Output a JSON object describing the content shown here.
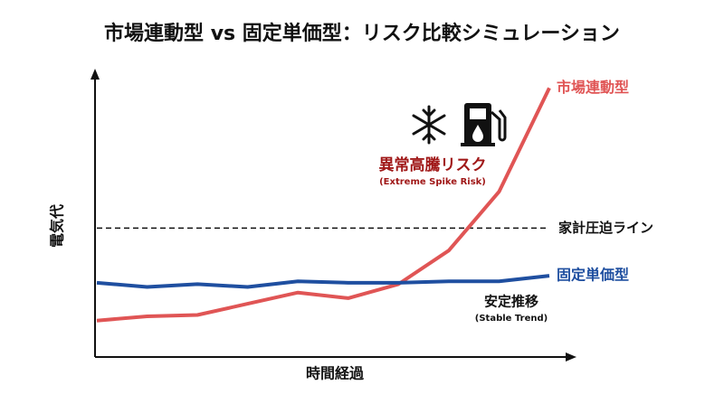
{
  "chart_data": {
    "type": "line",
    "title": "市場連動型 vs 固定単価型：リスク比較シミュレーション",
    "x_label": "時間経過",
    "y_label": "電気代",
    "categories": [
      null,
      null,
      null,
      null,
      null,
      null,
      null,
      null,
      null,
      null
    ],
    "series": [
      {
        "name": "市場連動型",
        "color": "#e05555",
        "values": [
          13,
          14.5,
          15,
          19,
          23,
          21,
          26,
          38,
          59,
          96
        ]
      },
      {
        "name": "固定単価型",
        "color": "#1f4fa0",
        "values": [
          26.5,
          25,
          26,
          25,
          27,
          26.5,
          26.5,
          27,
          27,
          29
        ]
      }
    ],
    "threshold": {
      "value": 46,
      "label": "家計圧迫ライン"
    },
    "annotations": [
      {
        "text": "異常高騰リスク",
        "subtext": "(Extreme Spike Risk)"
      },
      {
        "text": "安定推移",
        "subtext": "(Stable Trend)"
      }
    ],
    "ylim": [
      0,
      100
    ]
  }
}
